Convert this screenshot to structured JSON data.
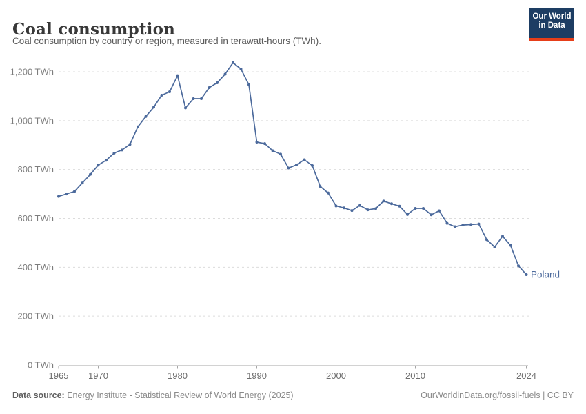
{
  "header": {
    "title": "Coal consumption",
    "subtitle": "Coal consumption by country or region, measured in terawatt-hours (TWh)."
  },
  "logo": {
    "line1": "Our World",
    "line2": "in Data"
  },
  "chart_data": {
    "type": "line",
    "title": "Coal consumption",
    "xlabel": "",
    "ylabel": "TWh",
    "grid": "horizontal-dashed",
    "legend_position": "end-of-line-label",
    "xlim": [
      1965,
      2024
    ],
    "ylim": [
      0,
      1200
    ],
    "xticks": [
      {
        "v": 1965,
        "label": "1965"
      },
      {
        "v": 1970,
        "label": "1970"
      },
      {
        "v": 1980,
        "label": "1980"
      },
      {
        "v": 1990,
        "label": "1990"
      },
      {
        "v": 2000,
        "label": "2000"
      },
      {
        "v": 2010,
        "label": "2010"
      },
      {
        "v": 2024,
        "label": "2024"
      }
    ],
    "yticks": [
      {
        "v": 0,
        "label": "0 TWh"
      },
      {
        "v": 200,
        "label": "200 TWh"
      },
      {
        "v": 400,
        "label": "400 TWh"
      },
      {
        "v": 600,
        "label": "600 TWh"
      },
      {
        "v": 800,
        "label": "800 TWh"
      },
      {
        "v": 1000,
        "label": "1,000 TWh"
      },
      {
        "v": 1200,
        "label": "1,200 TWh"
      }
    ],
    "series": [
      {
        "name": "Poland",
        "color": "#4c6a9c",
        "x": [
          1965,
          1966,
          1967,
          1968,
          1969,
          1970,
          1971,
          1972,
          1973,
          1974,
          1975,
          1976,
          1977,
          1978,
          1979,
          1980,
          1981,
          1982,
          1983,
          1984,
          1985,
          1986,
          1987,
          1988,
          1989,
          1990,
          1991,
          1992,
          1993,
          1994,
          1995,
          1996,
          1997,
          1998,
          1999,
          2000,
          2001,
          2002,
          2003,
          2004,
          2005,
          2006,
          2007,
          2008,
          2009,
          2010,
          2011,
          2012,
          2013,
          2014,
          2015,
          2016,
          2017,
          2018,
          2019,
          2020,
          2021,
          2022,
          2023,
          2024
        ],
        "values": [
          690,
          700,
          710,
          745,
          780,
          818,
          838,
          867,
          880,
          903,
          975,
          1017,
          1055,
          1104,
          1118,
          1184,
          1052,
          1090,
          1090,
          1135,
          1155,
          1190,
          1237,
          1211,
          1147,
          912,
          906,
          877,
          863,
          806,
          819,
          840,
          816,
          731,
          704,
          651,
          643,
          632,
          653,
          635,
          640,
          671,
          660,
          650,
          616,
          641,
          641,
          615,
          631,
          580,
          566,
          573,
          575,
          577,
          513,
          483,
          527,
          490,
          406,
          370
        ]
      }
    ],
    "end_label": "Poland",
    "colors": {
      "line": "#4c6a9c",
      "grid": "#dcdcdc",
      "axis": "#a5a5a5",
      "ytick_text": "#7d7d7d",
      "xtick_text": "#6e6e6e"
    }
  },
  "footer": {
    "datasource_label": "Data source:",
    "datasource": " Energy Institute - Statistical Review of World Energy (2025)",
    "link": "OurWorldinData.org/fossil-fuels",
    "sep": " | ",
    "license": "CC BY"
  }
}
